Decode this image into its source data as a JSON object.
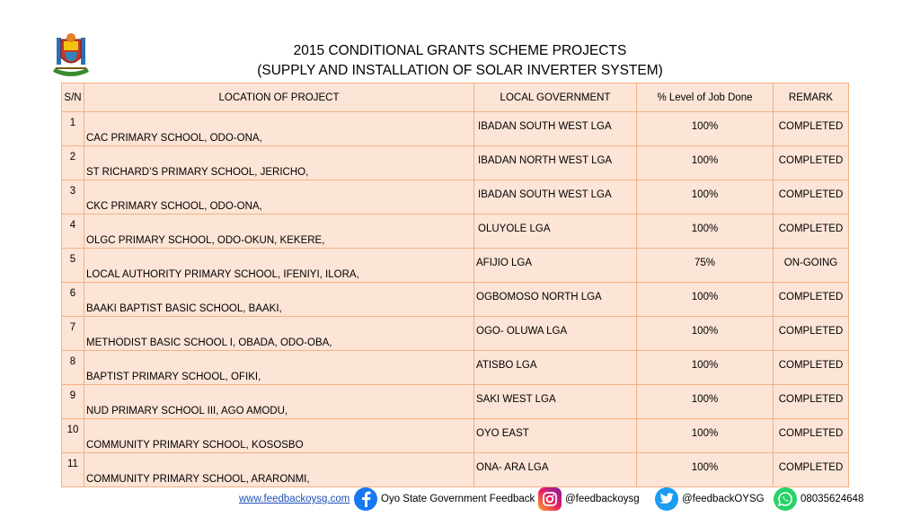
{
  "title": {
    "line1": "2015 CONDITIONAL GRANTS SCHEME PROJECTS",
    "line2": "(SUPPLY AND INSTALLATION OF SOLAR INVERTER SYSTEM)"
  },
  "table": {
    "headers": {
      "sn": "S/N",
      "location": "LOCATION OF PROJECT",
      "lga": "LOCAL GOVERNMENT",
      "level": "% Level  of Job Done",
      "remark": "REMARK"
    },
    "rows": [
      {
        "sn": "1",
        "location": "CAC PRIMARY SCHOOL, ODO-ONA,",
        "lga": "IBADAN SOUTH WEST LGA",
        "level": "100%",
        "remark": "COMPLETED"
      },
      {
        "sn": "2",
        "location": "ST RICHARD’S PRIMARY SCHOOL, JERICHO,",
        "lga": "IBADAN NORTH WEST LGA",
        "level": "100%",
        "remark": "COMPLETED"
      },
      {
        "sn": "3",
        "location": "CKC PRIMARY SCHOOL, ODO-ONA,",
        "lga": "IBADAN SOUTH WEST LGA",
        "level": "100%",
        "remark": "COMPLETED"
      },
      {
        "sn": "4",
        "location": "OLGC PRIMARY SCHOOL, ODO-OKUN, KEKERE,",
        "lga": "OLUYOLE LGA",
        "level": "100%",
        "remark": "COMPLETED"
      },
      {
        "sn": "5",
        "location": "LOCAL AUTHORITY PRIMARY SCHOOL, IFENIYI, ILORA,",
        "lga": "AFIJIO LGA",
        "level": "75%",
        "remark": "ON-GOING"
      },
      {
        "sn": "6",
        "location": "BAAKI BAPTIST BASIC SCHOOL, BAAKI,",
        "lga": "OGBOMOSO NORTH LGA",
        "level": "100%",
        "remark": "COMPLETED"
      },
      {
        "sn": "7",
        "location": "METHODIST BASIC SCHOOL I, OBADA, ODO-OBA,",
        "lga": "OGO- OLUWA LGA",
        "level": "100%",
        "remark": "COMPLETED"
      },
      {
        "sn": "8",
        "location": "BAPTIST PRIMARY SCHOOL, OFIKI,",
        "lga": "ATISBO LGA",
        "level": "100%",
        "remark": "COMPLETED"
      },
      {
        "sn": "9",
        "location": "NUD PRIMARY SCHOOL III, AGO AMODU,",
        "lga": "SAKI WEST LGA",
        "level": "100%",
        "remark": "COMPLETED"
      },
      {
        "sn": "10",
        "location": "COMMUNITY PRIMARY SCHOOL, KOSOSBO",
        "lga": "OYO EAST",
        "level": "100%",
        "remark": "COMPLETED"
      },
      {
        "sn": "11",
        "location": "COMMUNITY PRIMARY SCHOOL, ARARONMI,",
        "lga": "ONA- ARA LGA",
        "level": "100%",
        "remark": "COMPLETED"
      }
    ]
  },
  "footer": {
    "website": "www.feedbackoysg.com",
    "facebook": "Oyo State Government Feedback",
    "instagram": "@feedbackoysg",
    "twitter": "@feedbackOYSG",
    "whatsapp": "08035624648"
  },
  "icons": {
    "logo": "oyo-state-crest",
    "facebook": "facebook-icon",
    "instagram": "instagram-icon",
    "twitter": "twitter-icon",
    "whatsapp": "whatsapp-icon"
  },
  "colors": {
    "table_fill": "#fce4d6",
    "table_border": "#f4b183",
    "facebook": "#1877f2",
    "twitter": "#1d9bf0",
    "whatsapp": "#25d366"
  }
}
